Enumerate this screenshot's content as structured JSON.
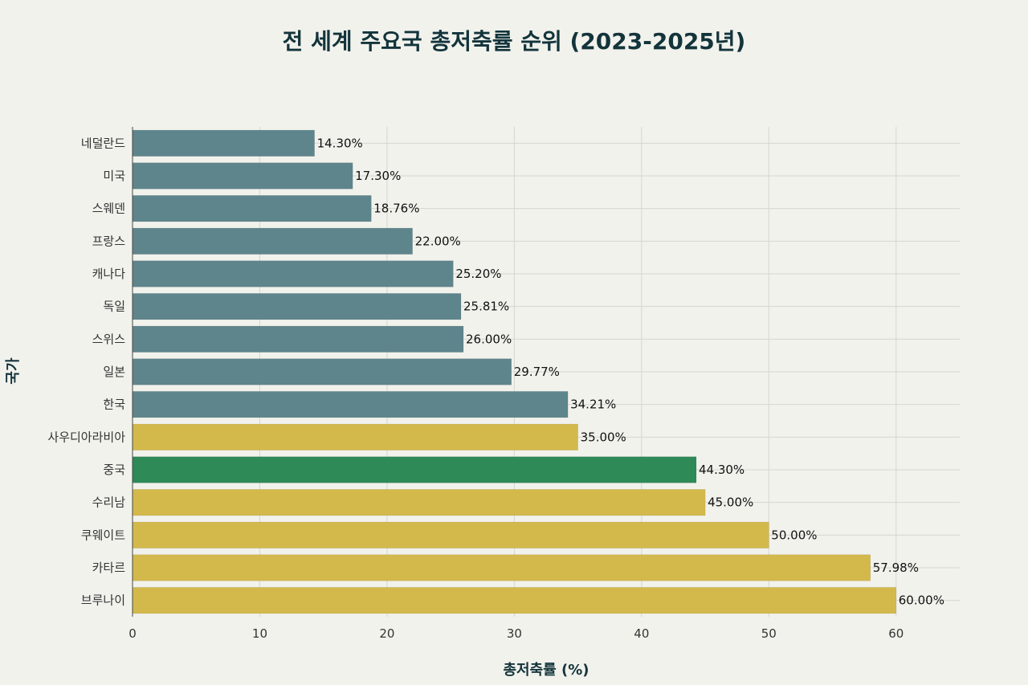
{
  "chart_data": {
    "type": "bar",
    "orientation": "horizontal",
    "title": "전 세계 주요국 총저축률 순위 (2023-2025년)",
    "xlabel": "총저축률 (%)",
    "ylabel": "국가",
    "xlim": [
      0,
      65
    ],
    "xticks": [
      0,
      10,
      20,
      30,
      40,
      50,
      60
    ],
    "grid": true,
    "categories": [
      "네덜란드",
      "미국",
      "스웨덴",
      "프랑스",
      "캐나다",
      "독일",
      "스위스",
      "일본",
      "한국",
      "사우디아라비아",
      "중국",
      "수리남",
      "쿠웨이트",
      "카타르",
      "브루나이"
    ],
    "values": [
      14.3,
      17.3,
      18.76,
      22.0,
      25.2,
      25.81,
      26.0,
      29.77,
      34.21,
      35.0,
      44.3,
      45.0,
      50.0,
      57.98,
      60.0
    ],
    "value_labels": [
      "14.30%",
      "17.30%",
      "18.76%",
      "22.00%",
      "25.20%",
      "25.81%",
      "26.00%",
      "29.77%",
      "34.21%",
      "35.00%",
      "44.30%",
      "45.00%",
      "50.00%",
      "57.98%",
      "60.00%"
    ],
    "groups": [
      "developed",
      "developed",
      "developed",
      "developed",
      "developed",
      "developed",
      "developed",
      "developed",
      "developed",
      "resource",
      "china",
      "resource",
      "resource",
      "resource",
      "resource"
    ],
    "colors": {
      "developed": "#5e858c",
      "resource": "#d3b94c",
      "china": "#2e8a57"
    }
  }
}
